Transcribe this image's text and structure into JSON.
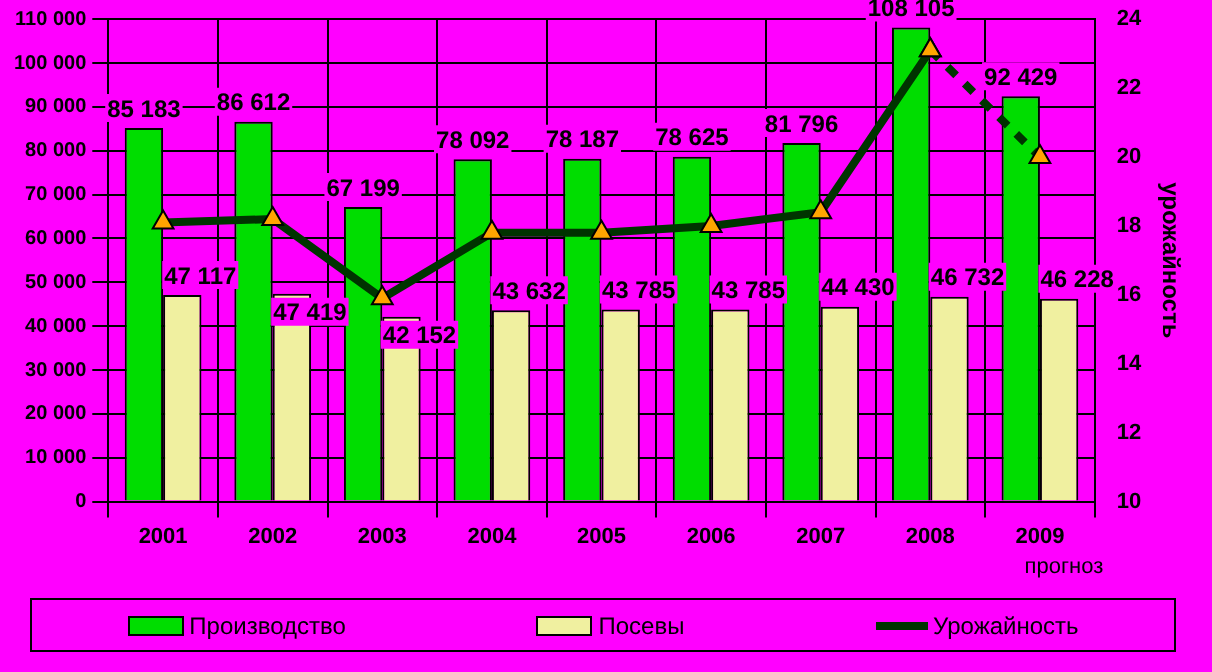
{
  "chart_data": {
    "type": "bar",
    "categories": [
      "2001",
      "2002",
      "2003",
      "2004",
      "2005",
      "2006",
      "2007",
      "2008",
      "2009"
    ],
    "series": [
      {
        "name": "Производство",
        "color": "#00dd00",
        "values": [
          85183,
          86612,
          67199,
          78092,
          78187,
          78625,
          81796,
          108105,
          92429
        ],
        "value_labels": [
          "85 183",
          "86 612",
          "67 199",
          "78 092",
          "78 187",
          "78 625",
          "81 796",
          "108 105",
          "92 429"
        ]
      },
      {
        "name": "Посевы",
        "color": "#f0f0a0",
        "values": [
          47117,
          47419,
          42152,
          43632,
          43785,
          43785,
          44430,
          46732,
          46228
        ],
        "value_labels": [
          "47 117",
          "47 419",
          "42 152",
          "43 632",
          "43 785",
          "43 785",
          "44 430",
          "46 732",
          "46 228"
        ]
      },
      {
        "name": "Урожайность",
        "type": "line",
        "axis": "y2",
        "color": "#003300",
        "marker": "triangle",
        "line_style": "solid",
        "values": [
          18.1,
          18.2,
          15.9,
          17.8,
          17.8,
          18.0,
          18.4,
          23.1,
          null
        ]
      },
      {
        "type": "line",
        "axis": "y2",
        "color": "#003300",
        "marker": "triangle",
        "line_style": "dashed",
        "values": [
          null,
          null,
          null,
          null,
          null,
          null,
          null,
          23.1,
          20.0
        ]
      }
    ],
    "ylim": [
      0,
      110000
    ],
    "yticks": [
      0,
      {
        "value": 10000,
        "label": "10 000"
      },
      {
        "value": 20000,
        "label": "20 000"
      },
      {
        "value": 30000,
        "label": "30 000"
      },
      {
        "value": 40000,
        "label": "40 000"
      },
      {
        "value": 50000,
        "label": "50 000"
      },
      {
        "value": 60000,
        "label": "60 000"
      },
      {
        "value": 70000,
        "label": "70 000"
      },
      {
        "value": 80000,
        "label": "80 000"
      },
      {
        "value": 90000,
        "label": "90 000"
      },
      {
        "value": 100000,
        "label": "100 000"
      },
      {
        "value": 110000,
        "label": "110 000"
      }
    ],
    "y2lim": [
      10,
      24
    ],
    "y2ticks": [
      10,
      12,
      14,
      16,
      18,
      20,
      22,
      24
    ],
    "y2label": "урожайность",
    "annotations": [
      "прогноз"
    ],
    "grid": true,
    "legend": "bottom"
  }
}
